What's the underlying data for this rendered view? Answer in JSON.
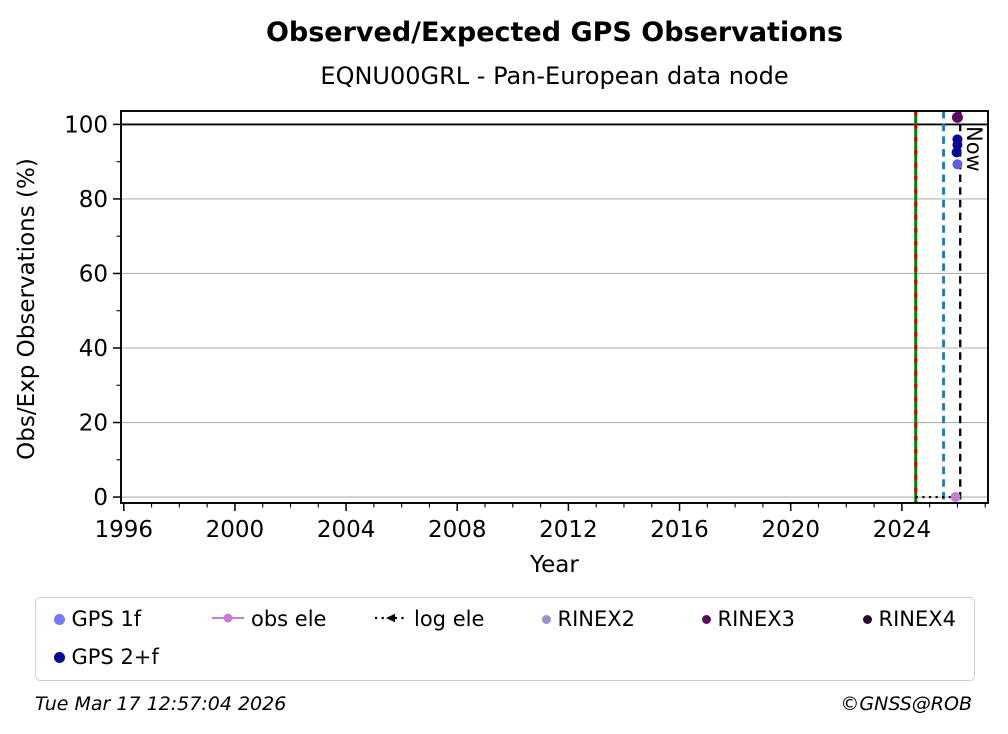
{
  "header": {
    "title": "Observed/Expected GPS Observations",
    "subtitle": "EQNU00GRL - Pan-European data node"
  },
  "footer": {
    "timestamp": "Tue Mar 17 12:57:04 2026",
    "credit": "©GNSS@ROB"
  },
  "chart_data": {
    "type": "scatter",
    "title": "Observed/Expected GPS Observations",
    "subtitle": "EQNU00GRL - Pan-European data node",
    "xlabel": "Year",
    "ylabel": "Obs/Exp Observations (%)",
    "xlim": [
      1995.9,
      2027.1
    ],
    "ylim": [
      -1.6,
      103.6
    ],
    "x_major_ticks": [
      1996,
      2000,
      2004,
      2008,
      2012,
      2016,
      2020,
      2024
    ],
    "x_minor_step": 1,
    "y_major_ticks": [
      0,
      20,
      40,
      60,
      80,
      100
    ],
    "y_minor_step": 10,
    "grid": {
      "y_values": [
        0,
        20,
        40,
        60,
        80
      ],
      "color": "#b2b2b2"
    },
    "reference_line": {
      "y": 100,
      "color": "#000000"
    },
    "vlines": [
      {
        "name": "green-red-deadline-line",
        "x": 2024.5,
        "style": "green-solid-red-dashed",
        "colors": [
          "#008000",
          "#cc0000"
        ],
        "label": ""
      },
      {
        "name": "blue-deadline-line",
        "x": 2025.5,
        "style": "dashed",
        "colors": [
          "#1f77b4"
        ],
        "label": ""
      },
      {
        "name": "now-line",
        "x": 2026.1,
        "style": "dashed",
        "colors": [
          "#000000"
        ],
        "label": "Now"
      }
    ],
    "line_series": [
      {
        "name": "log ele",
        "color": "#000000",
        "style": "dotted",
        "y": 0,
        "x_start": 2024.5,
        "x_end": 2026.15
      }
    ],
    "series": [
      {
        "name": "obs ele",
        "color": "#c27fd4",
        "marker": "circle",
        "points": [
          {
            "x": 2025.93,
            "y": 0
          }
        ]
      },
      {
        "name": "GPS 2+f",
        "color": "#0a0a96",
        "marker": "circle",
        "points": [
          {
            "x": 2026.0,
            "y": 96.0
          },
          {
            "x": 2026.0,
            "y": 94.5
          },
          {
            "x": 2025.97,
            "y": 92.5
          }
        ]
      },
      {
        "name": "GPS 1f",
        "color": "#5a5ee0",
        "marker": "circle",
        "points": [
          {
            "x": 2026.0,
            "y": 89.3
          }
        ]
      },
      {
        "name": "RINEX2",
        "color": "#9a90cb",
        "marker": "circle",
        "points": []
      },
      {
        "name": "RINEX3",
        "color": "#5c0c5e",
        "marker": "circle",
        "points": [
          {
            "x": 2026.0,
            "y": 101.9
          }
        ]
      },
      {
        "name": "RINEX4",
        "color": "#220c24",
        "marker": "circle",
        "points": []
      }
    ],
    "now_label": "Now",
    "legend": {
      "items": [
        {
          "label": "GPS 1f",
          "marker": "dot",
          "color": "#767bf0"
        },
        {
          "label": "obs ele",
          "marker": "line-dot",
          "color": "#c27fd4"
        },
        {
          "label": "log ele",
          "marker": "dotted-arrow",
          "color": "#000000"
        },
        {
          "label": "RINEX2",
          "marker": "dot-small",
          "color": "#9a90cb"
        },
        {
          "label": "RINEX3",
          "marker": "dot-small",
          "color": "#5c0c5e"
        },
        {
          "label": "RINEX4",
          "marker": "dot-small",
          "color": "#220c24"
        },
        {
          "label": "GPS 2+f",
          "marker": "dot",
          "color": "#0a0a96"
        }
      ]
    }
  }
}
